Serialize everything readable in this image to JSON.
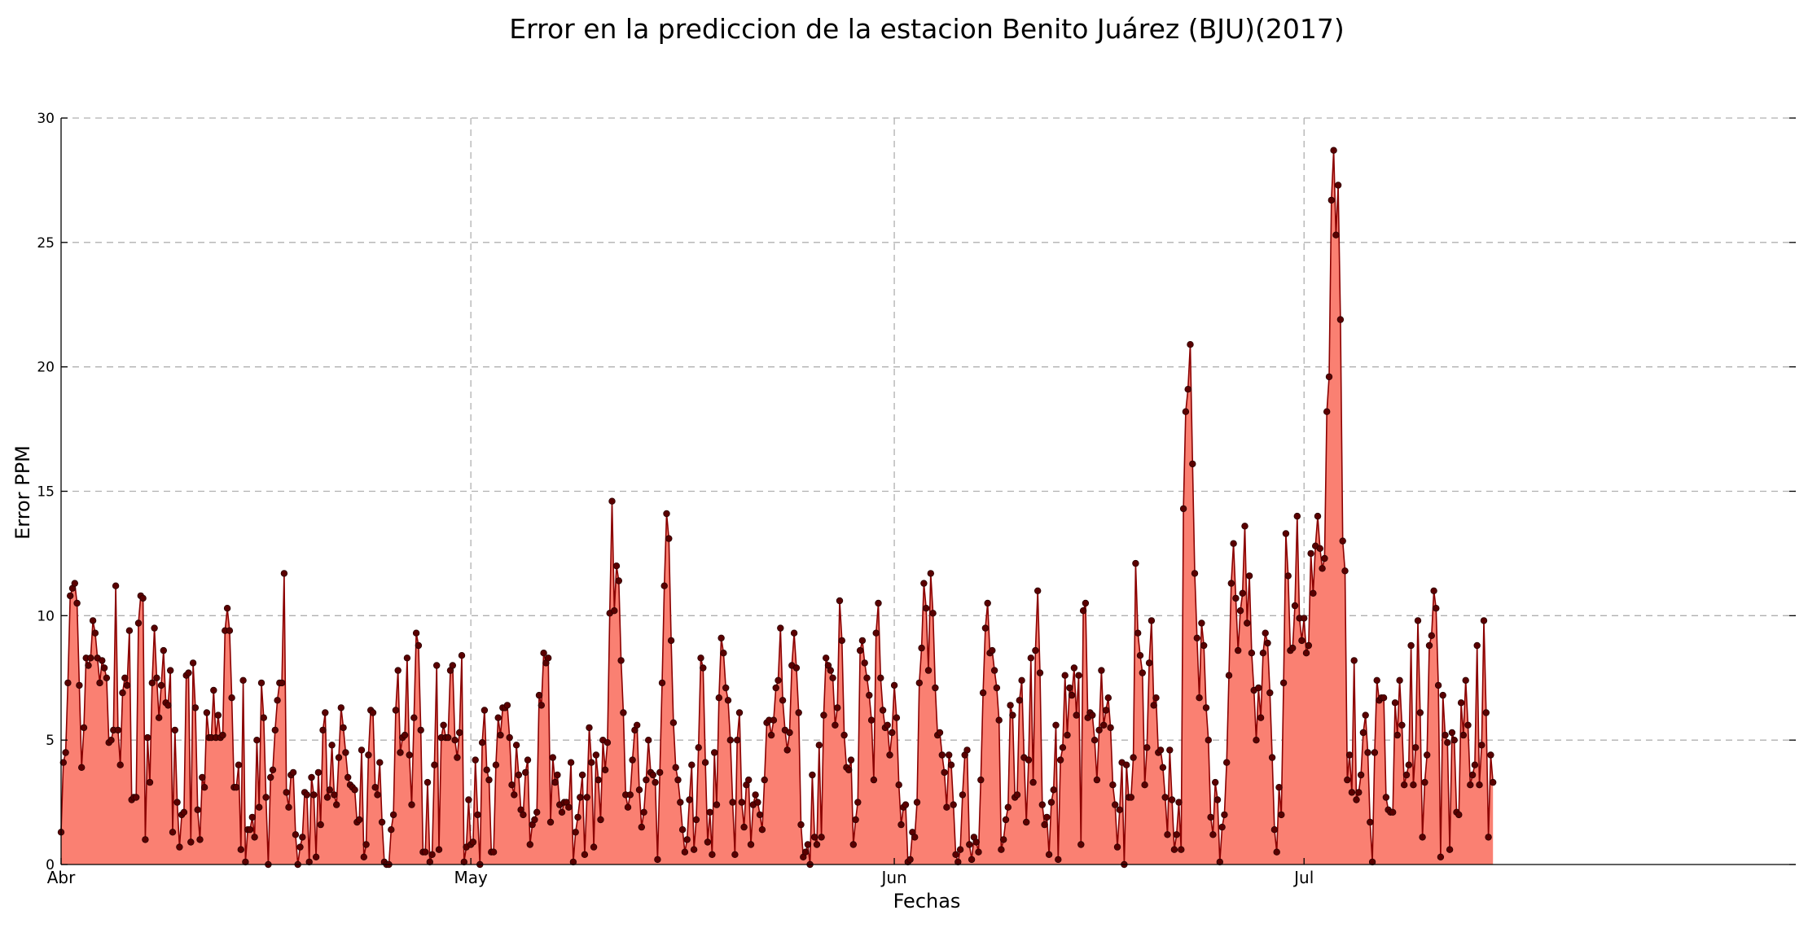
{
  "chart_data": {
    "type": "area",
    "title": "Error en la prediccion de la estacion Benito Juárez (BJU)(2017)",
    "xlabel": "Fechas",
    "ylabel": "Error PPM",
    "ylim": [
      0,
      30
    ],
    "yticks": [
      "0",
      "5",
      "10",
      "15",
      "20",
      "25",
      "30"
    ],
    "xlim": [
      "2017-04-01",
      "2017-08-06"
    ],
    "xticks": [
      {
        "label": "Abr",
        "date": "2017-04-01"
      },
      {
        "label": "May",
        "date": "2017-05-01"
      },
      {
        "label": "Jun",
        "date": "2017-06-01"
      },
      {
        "label": "Jul",
        "date": "2017-07-01"
      }
    ],
    "grid": true,
    "sampling": "every 4 hours, starting 2017-04-01",
    "colors": {
      "fill": "#fa8072",
      "line": "#8b0000",
      "marker": "#5a0000"
    },
    "series": [
      {
        "values": [
          1.3,
          4.1,
          4.5,
          7.3,
          10.8,
          11.1,
          11.3,
          10.5,
          7.2,
          3.9,
          5.5,
          8.3,
          8.0,
          8.3,
          9.8,
          9.3,
          8.3,
          7.3,
          8.2,
          7.9,
          7.5,
          4.9,
          5.0,
          5.4,
          11.2,
          5.4,
          4.0,
          6.9,
          7.5,
          7.2,
          9.4,
          2.6,
          2.7,
          2.7,
          9.7,
          10.8,
          10.7,
          1.0,
          5.1,
          3.3,
          7.3,
          9.5,
          7.5,
          5.9,
          7.2,
          8.6,
          6.5,
          6.4,
          7.8,
          1.3,
          5.4,
          2.5,
          0.7,
          2.0,
          2.1,
          7.6,
          7.7,
          0.9,
          8.1,
          6.3,
          2.2,
          1.0,
          3.5,
          3.1,
          6.1,
          5.1,
          5.1,
          7.0,
          5.1,
          6.0,
          5.1,
          5.2,
          9.4,
          10.3,
          9.4,
          6.7,
          3.1,
          3.1,
          4.0,
          0.6,
          7.4,
          0.1,
          1.4,
          1.4,
          1.9,
          1.1,
          5.0,
          2.3,
          7.3,
          5.9,
          2.7,
          0.0,
          3.5,
          3.8,
          5.4,
          6.6,
          7.3,
          7.3,
          11.7,
          2.9,
          2.3,
          3.6,
          3.7,
          1.2,
          0.0,
          0.7,
          1.1,
          2.9,
          2.8,
          0.1,
          3.5,
          2.8,
          0.3,
          3.7,
          1.6,
          5.4,
          6.1,
          2.7,
          3.0,
          4.8,
          2.8,
          2.4,
          4.3,
          6.3,
          5.5,
          4.5,
          3.5,
          3.2,
          3.1,
          3.0,
          1.7,
          1.8,
          4.6,
          0.3,
          0.8,
          4.4,
          6.2,
          6.1,
          3.1,
          2.8,
          4.1,
          1.7,
          0.1,
          0.0,
          0.0,
          1.4,
          2.0,
          6.2,
          7.8,
          4.5,
          5.1,
          5.2,
          8.3,
          4.4,
          2.4,
          5.9,
          9.3,
          8.8,
          5.4,
          0.5,
          0.5,
          3.3,
          0.1,
          0.4,
          4.0,
          8.0,
          0.6,
          5.1,
          5.6,
          5.1,
          5.1,
          7.8,
          8.0,
          5.0,
          4.3,
          5.3,
          8.4,
          0.1,
          0.7,
          2.6,
          0.8,
          0.9,
          4.2,
          2.0,
          0.0,
          4.9,
          6.2,
          3.8,
          3.4,
          0.5,
          0.5,
          4.0,
          5.9,
          5.2,
          6.3,
          6.3,
          6.4,
          5.1,
          3.2,
          2.8,
          4.8,
          3.6,
          2.2,
          2.0,
          3.7,
          4.2,
          0.8,
          1.6,
          1.8,
          2.1,
          6.8,
          6.4,
          8.5,
          8.1,
          8.3,
          1.7,
          4.3,
          3.3,
          3.6,
          2.4,
          2.1,
          2.5,
          2.5,
          2.3,
          4.1,
          0.1,
          1.3,
          1.9,
          2.7,
          3.6,
          0.4,
          2.7,
          5.5,
          4.1,
          0.7,
          4.4,
          3.4,
          1.8,
          5.0,
          3.8,
          4.9,
          10.1,
          14.6,
          10.2,
          12.0,
          11.4,
          8.2,
          6.1,
          2.8,
          2.3,
          2.8,
          4.2,
          5.4,
          5.6,
          3.0,
          1.5,
          2.1,
          3.4,
          5.0,
          3.7,
          3.6,
          3.3,
          0.2,
          3.7,
          7.3,
          11.2,
          14.1,
          13.1,
          9.0,
          5.7,
          3.9,
          3.4,
          2.5,
          1.4,
          0.5,
          1.0,
          2.6,
          4.0,
          0.6,
          1.8,
          4.7,
          8.3,
          7.9,
          4.1,
          0.9,
          2.1,
          0.4,
          4.5,
          2.4,
          6.7,
          9.1,
          8.5,
          7.1,
          6.6,
          5.0,
          2.5,
          0.4,
          5.0,
          6.1,
          2.5,
          1.5,
          3.2,
          3.4,
          0.8,
          2.4,
          2.8,
          2.5,
          2.0,
          1.4,
          3.4,
          5.7,
          5.8,
          5.2,
          5.8,
          7.1,
          7.4,
          9.5,
          6.6,
          5.4,
          4.6,
          5.3,
          8.0,
          9.3,
          7.9,
          6.1,
          1.6,
          0.3,
          0.5,
          0.8,
          0.0,
          3.6,
          1.1,
          0.8,
          4.8,
          1.1,
          6.0,
          8.3,
          8.0,
          7.8,
          7.5,
          5.6,
          6.3,
          10.6,
          9.0,
          5.2,
          3.9,
          3.8,
          4.2,
          0.8,
          1.8,
          2.5,
          8.6,
          9.0,
          8.1,
          7.5,
          6.8,
          5.8,
          3.4,
          9.3,
          10.5,
          7.5,
          6.2,
          5.5,
          5.6,
          4.4,
          5.3,
          7.2,
          5.9,
          3.2,
          1.6,
          2.3,
          2.4,
          0.1,
          0.2,
          1.3,
          1.1,
          2.5,
          7.3,
          8.7,
          11.3,
          10.3,
          7.8,
          11.7,
          10.1,
          7.1,
          5.2,
          5.3,
          4.4,
          3.7,
          2.3,
          4.4,
          4.0,
          2.4,
          0.4,
          0.1,
          0.6,
          2.8,
          4.4,
          4.6,
          0.8,
          0.2,
          1.1,
          0.9,
          0.5,
          3.4,
          6.9,
          9.5,
          10.5,
          8.5,
          8.6,
          7.8,
          7.1,
          5.8,
          0.6,
          1.0,
          1.8,
          2.3,
          6.4,
          6.0,
          2.7,
          2.8,
          6.6,
          7.4,
          4.3,
          1.7,
          4.2,
          8.3,
          3.3,
          8.6,
          11.0,
          7.7,
          2.4,
          1.6,
          1.9,
          0.4,
          2.5,
          3.0,
          5.6,
          0.2,
          4.2,
          4.7,
          7.6,
          5.2,
          7.1,
          6.8,
          7.9,
          6.0,
          7.6,
          0.8,
          10.2,
          10.5,
          5.9,
          6.1,
          6.0,
          5.0,
          3.4,
          5.4,
          7.8,
          5.6,
          6.2,
          6.7,
          5.5,
          3.2,
          2.4,
          0.7,
          2.2,
          4.1,
          0.0,
          4.0,
          2.7,
          2.7,
          4.3,
          12.1,
          9.3,
          8.4,
          7.7,
          3.2,
          4.7,
          8.1,
          9.8,
          6.4,
          6.7,
          4.5,
          4.6,
          3.9,
          2.7,
          1.2,
          4.6,
          2.6,
          0.6,
          1.2,
          2.5,
          0.6,
          14.3,
          18.2,
          19.1,
          20.9,
          16.1,
          11.7,
          9.1,
          6.7,
          9.7,
          8.8,
          6.3,
          5.0,
          1.9,
          1.2,
          3.3,
          2.6,
          0.1,
          1.5,
          2.0,
          4.1,
          7.6,
          11.3,
          12.9,
          10.7,
          8.6,
          10.2,
          10.9,
          13.6,
          9.7,
          11.6,
          8.5,
          7.0,
          5.0,
          7.1,
          5.9,
          8.5,
          9.3,
          8.9,
          6.9,
          4.3,
          1.4,
          0.5,
          3.1,
          2.0,
          7.3,
          13.3,
          11.6,
          8.6,
          8.7,
          10.4,
          14.0,
          9.9,
          9.0,
          9.9,
          8.5,
          8.8,
          12.5,
          10.9,
          12.8,
          14.0,
          12.7,
          11.9,
          12.3,
          18.2,
          19.6,
          26.7,
          28.7,
          25.3,
          27.3,
          21.9,
          13.0,
          11.8,
          3.4,
          4.4,
          2.9,
          8.2,
          2.6,
          2.9,
          3.6,
          5.3,
          6.0,
          4.5,
          1.7,
          0.1,
          4.5,
          7.4,
          6.6,
          6.7,
          6.7,
          2.7,
          2.2,
          2.1,
          2.1,
          6.5,
          5.2,
          7.4,
          5.6,
          3.2,
          3.6,
          4.0,
          8.8,
          3.2,
          4.7,
          9.8,
          6.1,
          1.1,
          3.3,
          4.4,
          8.8,
          9.2,
          11.0,
          10.3,
          7.2,
          0.3,
          6.8,
          5.2,
          4.9,
          0.6,
          5.3,
          5.0,
          2.1,
          2.0,
          6.5,
          5.2,
          7.4,
          5.6,
          3.2,
          3.6,
          4.0,
          8.8,
          3.2,
          4.8,
          9.8,
          6.1,
          1.1,
          4.4,
          3.3
        ]
      }
    ]
  }
}
